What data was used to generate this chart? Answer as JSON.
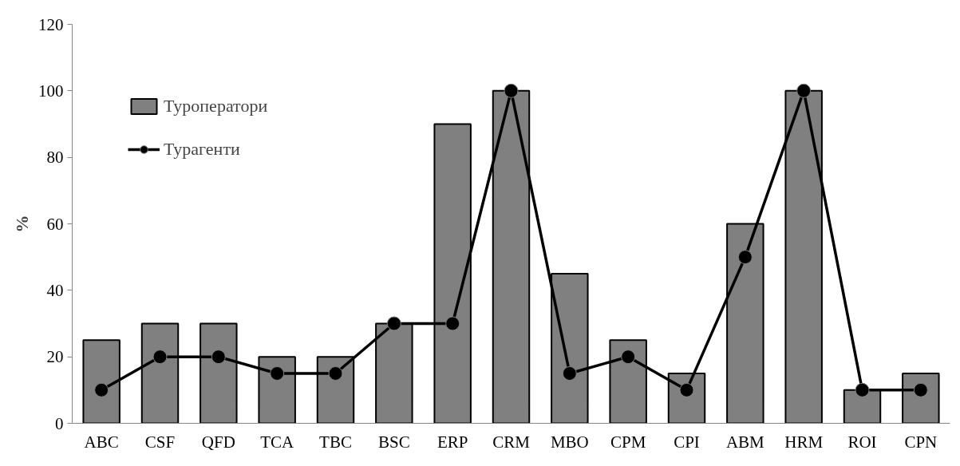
{
  "chart_data": {
    "type": "bar",
    "ylabel": "%",
    "categories": [
      "ABC",
      "CSF",
      "QFD",
      "TCA",
      "TBC",
      "BSC",
      "ERP",
      "CRM",
      "MBO",
      "CPM",
      "CPI",
      "ABM",
      "HRM",
      "ROI",
      "CPN"
    ],
    "series": [
      {
        "name": "Туроператори",
        "color": "#808080",
        "values": [
          25,
          30,
          30,
          20,
          20,
          30,
          90,
          100,
          45,
          25,
          15,
          60,
          100,
          10,
          15
        ]
      },
      {
        "name": "Турагенти",
        "type": "line",
        "color": "#000000",
        "values": [
          10,
          20,
          20,
          15,
          15,
          30,
          30,
          100,
          15,
          20,
          10,
          50,
          100,
          10,
          10
        ]
      }
    ],
    "ylim": [
      0,
      120
    ],
    "yticks": [
      0,
      20,
      40,
      60,
      80,
      100,
      120
    ],
    "grid": false,
    "legend": "top left",
    "marker": "circle",
    "line_style": "solid"
  }
}
